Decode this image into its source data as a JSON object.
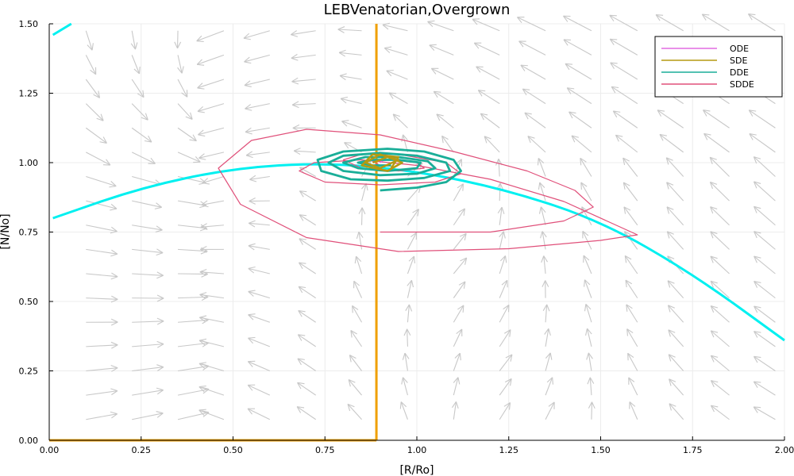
{
  "chart_data": {
    "type": "line",
    "title": "LEBVenatorian,Overgrown",
    "xlabel": "[R/Ro]",
    "ylabel": "[N/No]",
    "xlim": [
      0,
      2
    ],
    "ylim": [
      0,
      1.5
    ],
    "xticks": [
      0,
      0.25,
      0.5,
      0.75,
      1.0,
      1.25,
      1.5,
      1.75,
      2.0
    ],
    "xtick_labels": [
      "0.00",
      "0.25",
      "0.50",
      "0.75",
      "1.00",
      "1.25",
      "1.50",
      "1.75",
      "2.00"
    ],
    "yticks": [
      0,
      0.25,
      0.5,
      0.75,
      1.0,
      1.25,
      1.5
    ],
    "ytick_labels": [
      "0.00",
      "0.25",
      "0.50",
      "0.75",
      "1.00",
      "1.25",
      "1.50"
    ],
    "grid": true,
    "legend_position": "top-right",
    "series": [
      {
        "name": "ODE",
        "color": "#e26be2",
        "points": [
          [
            0.9,
            1.0
          ],
          [
            0.91,
            1.01
          ],
          [
            0.9,
            1.0
          ]
        ]
      },
      {
        "name": "SDE",
        "color": "#b59a12",
        "points": [
          [
            0.88,
            1.0
          ],
          [
            0.92,
            1.02
          ],
          [
            0.95,
            1.01
          ],
          [
            0.9,
            0.98
          ],
          [
            0.86,
            1.0
          ],
          [
            0.9,
            1.03
          ],
          [
            0.96,
            1.0
          ],
          [
            0.92,
            0.97
          ],
          [
            0.85,
            0.99
          ],
          [
            0.88,
            1.03
          ],
          [
            0.95,
            1.02
          ],
          [
            0.93,
            0.98
          ]
        ]
      },
      {
        "name": "DDE",
        "color": "#1aae98",
        "points": [
          [
            0.9,
            0.9
          ],
          [
            1.0,
            0.91
          ],
          [
            1.08,
            0.93
          ],
          [
            1.12,
            0.97
          ],
          [
            1.1,
            1.01
          ],
          [
            1.02,
            1.04
          ],
          [
            0.92,
            1.05
          ],
          [
            0.8,
            1.04
          ],
          [
            0.73,
            1.01
          ],
          [
            0.74,
            0.97
          ],
          [
            0.82,
            0.94
          ],
          [
            0.92,
            0.935
          ],
          [
            1.02,
            0.945
          ],
          [
            1.09,
            0.97
          ],
          [
            1.08,
            1.0
          ],
          [
            1.0,
            1.025
          ],
          [
            0.9,
            1.035
          ],
          [
            0.8,
            1.025
          ],
          [
            0.76,
            1.0
          ],
          [
            0.8,
            0.97
          ],
          [
            0.9,
            0.955
          ],
          [
            1.0,
            0.96
          ],
          [
            1.05,
            0.98
          ],
          [
            1.03,
            1.005
          ],
          [
            0.95,
            1.02
          ],
          [
            0.86,
            1.02
          ],
          [
            0.8,
            1.0
          ],
          [
            0.84,
            0.98
          ],
          [
            0.92,
            0.97
          ],
          [
            1.0,
            0.98
          ],
          [
            1.01,
            1.0
          ],
          [
            0.95,
            1.01
          ],
          [
            0.88,
            1.01
          ],
          [
            0.84,
            1.0
          ],
          [
            0.88,
            0.99
          ],
          [
            0.93,
            0.99
          ]
        ]
      },
      {
        "name": "SDDE",
        "color": "#e0507a",
        "points": [
          [
            0.9,
            0.75
          ],
          [
            1.2,
            0.75
          ],
          [
            1.4,
            0.79
          ],
          [
            1.48,
            0.84
          ],
          [
            1.43,
            0.9
          ],
          [
            1.3,
            0.97
          ],
          [
            1.1,
            1.04
          ],
          [
            0.9,
            1.1
          ],
          [
            0.7,
            1.12
          ],
          [
            0.55,
            1.08
          ],
          [
            0.46,
            0.98
          ],
          [
            0.52,
            0.85
          ],
          [
            0.7,
            0.73
          ],
          [
            0.95,
            0.68
          ],
          [
            1.25,
            0.69
          ],
          [
            1.5,
            0.72
          ],
          [
            1.6,
            0.74
          ],
          [
            1.4,
            0.86
          ],
          [
            1.2,
            0.94
          ],
          [
            1.0,
            0.99
          ],
          [
            0.85,
            1.01
          ],
          [
            0.72,
            1.0
          ],
          [
            0.68,
            0.97
          ],
          [
            0.75,
            0.93
          ],
          [
            0.9,
            0.92
          ],
          [
            1.05,
            0.93
          ],
          [
            1.12,
            0.96
          ],
          [
            1.08,
            1.0
          ],
          [
            0.95,
            1.03
          ],
          [
            0.85,
            1.03
          ],
          [
            0.8,
            1.01
          ],
          [
            0.85,
            0.98
          ],
          [
            0.95,
            0.97
          ],
          [
            1.02,
            0.98
          ],
          [
            1.0,
            1.0
          ],
          [
            0.93,
            1.01
          ],
          [
            0.88,
            1.005
          ],
          [
            0.9,
            0.99
          ]
        ]
      }
    ],
    "nullclines": {
      "vertical": {
        "x": 0.89,
        "color": "#f0a000"
      },
      "baseline": {
        "y": 0.0,
        "x_end": 0.89,
        "color": "#f0a000"
      },
      "curve": {
        "color": "#00f0f0",
        "points": [
          [
            0.01,
            0.8
          ],
          [
            0.25,
            0.91
          ],
          [
            0.5,
            0.98
          ],
          [
            0.75,
            1.0
          ],
          [
            1.0,
            0.97
          ],
          [
            1.25,
            0.9
          ],
          [
            1.5,
            0.79
          ],
          [
            1.75,
            0.6
          ],
          [
            2.0,
            0.36
          ]
        ]
      },
      "curve_top": {
        "color": "#00f0f0",
        "points": [
          [
            0.01,
            1.46
          ],
          [
            0.06,
            1.5
          ]
        ]
      }
    },
    "vector_field": {
      "color": "#c8c8c8"
    }
  }
}
